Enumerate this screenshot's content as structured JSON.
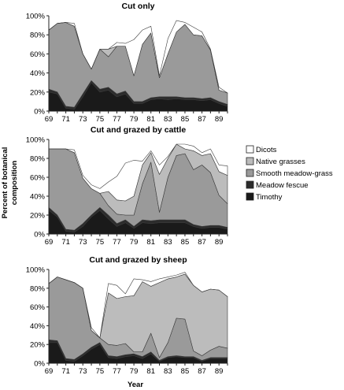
{
  "figure": {
    "xlabel": "Year",
    "ylabel_lines": [
      "Percent of botanical",
      "composition"
    ]
  },
  "legend": [
    {
      "label": "Dicots",
      "color": "#ffffff"
    },
    {
      "label": "Native grasses",
      "color": "#bcbcbc"
    },
    {
      "label": "Smooth meadow-grass",
      "color": "#9a9a9a"
    },
    {
      "label": "Meadow fescue",
      "color": "#2c2c2c"
    },
    {
      "label": "Timothy",
      "color": "#1a1a1a"
    }
  ],
  "chart_data": [
    {
      "type": "area",
      "title": "Cut only",
      "xlabel": "",
      "ylabel": "Percent of botanical composition",
      "x": [
        69,
        70,
        71,
        72,
        73,
        74,
        75,
        76,
        77,
        78,
        79,
        80,
        81,
        82,
        83,
        84,
        85,
        86,
        87,
        88,
        89,
        90
      ],
      "x_tick_labels": [
        "69",
        "71",
        "73",
        "75",
        "77",
        "79",
        "81",
        "83",
        "85",
        "87",
        "89"
      ],
      "y_tick_labels": [
        "0%",
        "20%",
        "40%",
        "60%",
        "80%",
        "100%"
      ],
      "ylim": [
        0,
        100
      ],
      "stacked": true,
      "series": [
        {
          "name": "Timothy",
          "color": "#1a1a1a",
          "values": [
            20,
            18,
            3,
            2,
            15,
            30,
            20,
            22,
            15,
            18,
            8,
            8,
            12,
            13,
            12,
            13,
            12,
            12,
            11,
            12,
            8,
            5
          ]
        },
        {
          "name": "Meadow fescue",
          "color": "#2c2c2c",
          "values": [
            3,
            2,
            2,
            2,
            3,
            2,
            3,
            3,
            3,
            3,
            2,
            2,
            2,
            2,
            3,
            2,
            2,
            2,
            2,
            2,
            2,
            2
          ]
        },
        {
          "name": "Smooth meadow-grass",
          "color": "#9a9a9a",
          "values": [
            62,
            72,
            88,
            85,
            42,
            12,
            42,
            32,
            50,
            47,
            27,
            60,
            68,
            20,
            45,
            68,
            77,
            66,
            66,
            50,
            12,
            12
          ]
        },
        {
          "name": "Native grasses",
          "color": "#bcbcbc",
          "values": [
            0,
            0,
            0,
            0,
            0,
            0,
            0,
            8,
            0,
            0,
            0,
            0,
            0,
            0,
            0,
            0,
            0,
            0,
            0,
            0,
            0,
            0
          ]
        },
        {
          "name": "Dicots",
          "color": "#ffffff",
          "values": [
            0,
            0,
            0,
            3,
            0,
            0,
            0,
            0,
            4,
            3,
            38,
            15,
            7,
            2,
            16,
            12,
            2,
            8,
            4,
            1,
            3,
            0
          ]
        }
      ]
    },
    {
      "type": "area",
      "title": "Cut and grazed by cattle",
      "xlabel": "",
      "ylabel": "Percent of botanical composition",
      "x": [
        69,
        70,
        71,
        72,
        73,
        74,
        75,
        76,
        77,
        78,
        79,
        80,
        81,
        82,
        83,
        84,
        85,
        86,
        87,
        88,
        89,
        90
      ],
      "x_tick_labels": [
        "69",
        "71",
        "73",
        "75",
        "77",
        "79",
        "81",
        "83",
        "85",
        "87",
        "89"
      ],
      "y_tick_labels": [
        "0%",
        "20%",
        "40%",
        "60%",
        "80%",
        "100%"
      ],
      "ylim": [
        0,
        100
      ],
      "stacked": true,
      "series": [
        {
          "name": "Timothy",
          "color": "#1a1a1a",
          "values": [
            25,
            18,
            3,
            2,
            8,
            18,
            25,
            16,
            8,
            12,
            6,
            12,
            11,
            12,
            12,
            12,
            12,
            8,
            6,
            7,
            7,
            5
          ]
        },
        {
          "name": "Meadow fescue",
          "color": "#2c2c2c",
          "values": [
            3,
            2,
            2,
            2,
            3,
            2,
            3,
            4,
            3,
            3,
            2,
            3,
            3,
            3,
            3,
            3,
            3,
            2,
            2,
            2,
            2,
            2
          ]
        },
        {
          "name": "Smooth meadow-grass",
          "color": "#9a9a9a",
          "values": [
            62,
            70,
            85,
            82,
            48,
            28,
            15,
            10,
            10,
            5,
            12,
            38,
            62,
            8,
            45,
            68,
            70,
            58,
            65,
            56,
            32,
            25
          ]
        },
        {
          "name": "Native grasses",
          "color": "#bcbcbc",
          "values": [
            0,
            0,
            0,
            0,
            0,
            0,
            0,
            15,
            15,
            15,
            20,
            20,
            10,
            40,
            20,
            12,
            5,
            20,
            10,
            20,
            25,
            30
          ]
        },
        {
          "name": "Dicots",
          "color": "#ffffff",
          "values": [
            0,
            0,
            0,
            3,
            3,
            4,
            5,
            10,
            25,
            40,
            38,
            4,
            2,
            10,
            2,
            0,
            5,
            5,
            3,
            5,
            7,
            10
          ]
        }
      ]
    },
    {
      "type": "area",
      "title": "Cut and grazed by sheep",
      "xlabel": "Year",
      "ylabel": "Percent of botanical composition",
      "x": [
        69,
        70,
        71,
        72,
        73,
        74,
        75,
        76,
        77,
        78,
        79,
        80,
        81,
        82,
        83,
        84,
        85,
        86,
        87,
        88,
        89,
        90
      ],
      "x_tick_labels": [
        "69",
        "71",
        "73",
        "75",
        "77",
        "79",
        "81",
        "83",
        "85",
        "87",
        "89"
      ],
      "y_tick_labels": [
        "0%",
        "20%",
        "40%",
        "60%",
        "80%",
        "100%"
      ],
      "ylim": [
        0,
        100
      ],
      "stacked": true,
      "series": [
        {
          "name": "Timothy",
          "color": "#1a1a1a",
          "values": [
            22,
            22,
            3,
            2,
            8,
            15,
            20,
            6,
            5,
            7,
            8,
            5,
            10,
            2,
            6,
            7,
            6,
            6,
            2,
            5,
            5,
            5
          ]
        },
        {
          "name": "Meadow fescue",
          "color": "#2c2c2c",
          "values": [
            3,
            2,
            2,
            2,
            2,
            2,
            2,
            2,
            2,
            2,
            2,
            2,
            2,
            1,
            1,
            1,
            1,
            1,
            1,
            1,
            1,
            1
          ]
        },
        {
          "name": "Smooth meadow-grass",
          "color": "#9a9a9a",
          "values": [
            60,
            68,
            84,
            82,
            70,
            18,
            5,
            12,
            12,
            12,
            2,
            5,
            20,
            3,
            15,
            40,
            40,
            6,
            5,
            8,
            12,
            10
          ]
        },
        {
          "name": "Native grasses",
          "color": "#bcbcbc",
          "values": [
            0,
            0,
            0,
            0,
            0,
            0,
            0,
            55,
            50,
            50,
            60,
            75,
            50,
            80,
            68,
            44,
            48,
            70,
            68,
            65,
            60,
            55
          ]
        },
        {
          "name": "Dicots",
          "color": "#ffffff",
          "values": [
            0,
            0,
            0,
            0,
            0,
            3,
            0,
            10,
            14,
            3,
            18,
            2,
            5,
            4,
            2,
            2,
            2,
            0,
            0,
            0,
            0,
            0
          ]
        }
      ]
    }
  ]
}
